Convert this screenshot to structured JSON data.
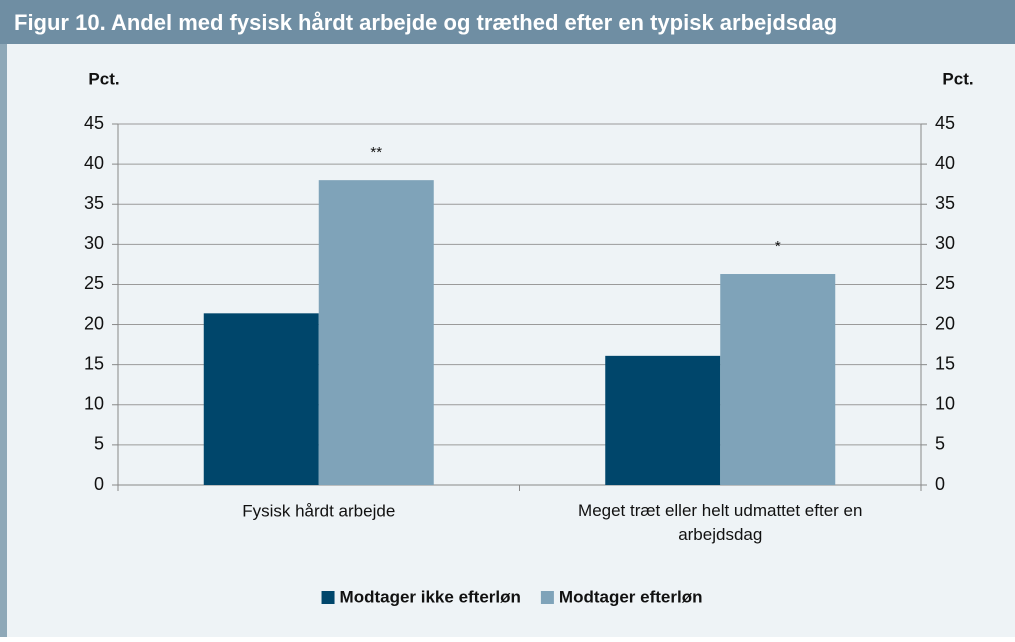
{
  "chart_data": {
    "type": "bar",
    "title": "Figur 10. Andel med fysisk hårdt arbejde og træthed efter en typisk arbejdsdag",
    "y_label": "Pct.",
    "y2_label": "Pct.",
    "categories": [
      "Fysisk hårdt arbejde",
      "Meget træt eller helt udmattet efter en arbejdsdag"
    ],
    "series": [
      {
        "name": "Modtager ikke efterløn",
        "color": "#00466b",
        "values": [
          21.4,
          16.1
        ]
      },
      {
        "name": "Modtager efterløn",
        "color": "#7fa3b9",
        "values": [
          38,
          26.3
        ],
        "annotations": [
          "**",
          "*"
        ]
      }
    ],
    "ylim": [
      0,
      45
    ],
    "yticks": [
      0,
      5,
      10,
      15,
      20,
      25,
      30,
      35,
      40,
      45
    ],
    "y2lim": [
      0,
      45
    ],
    "y2ticks": [
      0,
      5,
      10,
      15,
      20,
      25,
      30,
      35,
      40,
      45
    ],
    "legend": "bottom"
  }
}
